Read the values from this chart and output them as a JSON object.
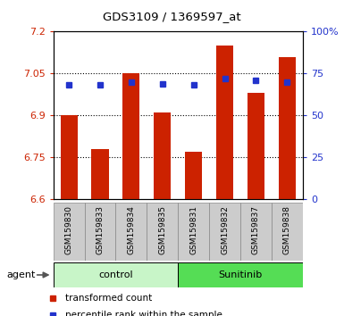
{
  "title": "GDS3109 / 1369597_at",
  "samples": [
    "GSM159830",
    "GSM159833",
    "GSM159834",
    "GSM159835",
    "GSM159831",
    "GSM159832",
    "GSM159837",
    "GSM159838"
  ],
  "red_values": [
    6.9,
    6.78,
    7.05,
    6.91,
    6.77,
    7.15,
    6.98,
    7.11
  ],
  "blue_values_pct": [
    68,
    68,
    70,
    69,
    68,
    72,
    71,
    70
  ],
  "ylim_left": [
    6.6,
    7.2
  ],
  "ylim_right": [
    0,
    100
  ],
  "yticks_left": [
    6.6,
    6.75,
    6.9,
    7.05,
    7.2
  ],
  "yticks_right": [
    0,
    25,
    50,
    75,
    100
  ],
  "ytick_labels_left": [
    "6.6",
    "6.75",
    "6.9",
    "7.05",
    "7.2"
  ],
  "ytick_labels_right": [
    "0",
    "25",
    "50",
    "75",
    "100%"
  ],
  "groups": [
    {
      "label": "control",
      "indices": [
        0,
        1,
        2,
        3
      ],
      "color": "#c8f5c8"
    },
    {
      "label": "Sunitinib",
      "indices": [
        4,
        5,
        6,
        7
      ],
      "color": "#55dd55"
    }
  ],
  "bar_color": "#cc2200",
  "dot_color": "#2233cc",
  "bar_base": 6.6,
  "bar_width": 0.55,
  "bg_plot": "#ffffff",
  "agent_label": "agent",
  "legend_items": [
    "transformed count",
    "percentile rank within the sample"
  ]
}
